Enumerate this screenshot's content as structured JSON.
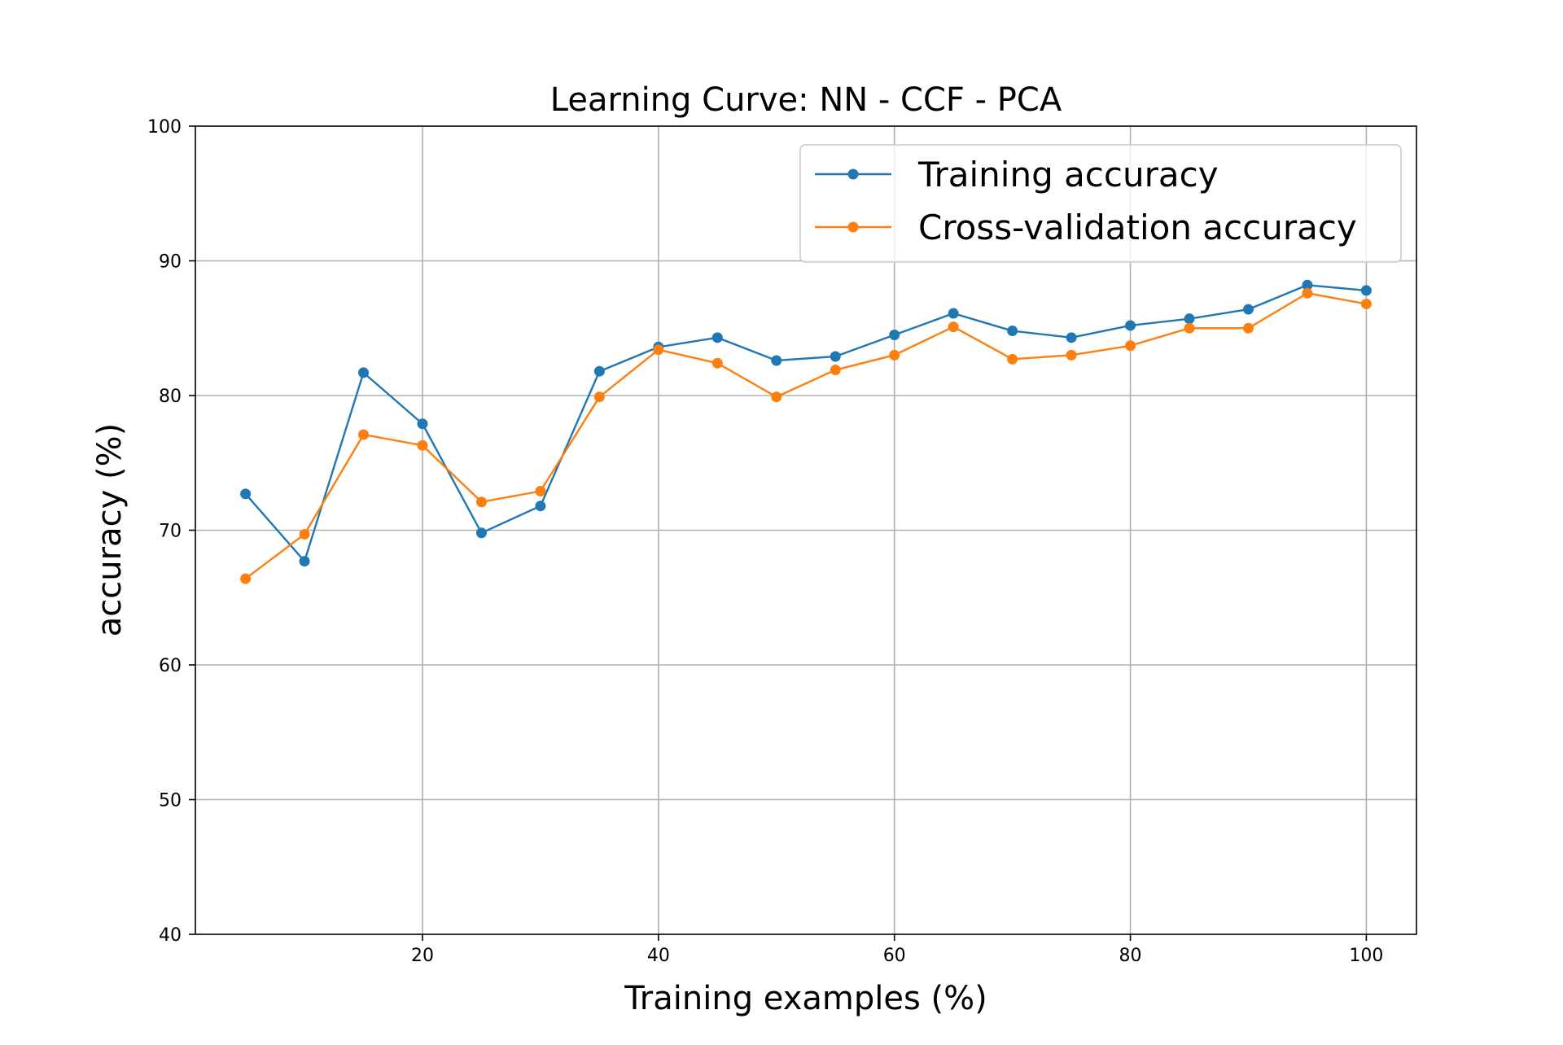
{
  "chart_data": {
    "type": "line",
    "title": "Learning Curve: NN - CCF - PCA",
    "xlabel": "Training examples (%)",
    "ylabel": "accuracy (%)",
    "xlim": [
      0.75,
      104.25
    ],
    "ylim": [
      40,
      100
    ],
    "xticks": [
      20,
      40,
      60,
      80,
      100
    ],
    "yticks": [
      40,
      50,
      60,
      70,
      80,
      90,
      100
    ],
    "grid": true,
    "legend_position": "top-right",
    "x": [
      5,
      10,
      15,
      20,
      25,
      30,
      35,
      40,
      45,
      50,
      55,
      60,
      65,
      70,
      75,
      80,
      85,
      90,
      95,
      100
    ],
    "series": [
      {
        "name": "Training accuracy",
        "color": "#1f77b4",
        "marker": "circle",
        "values": [
          72.7,
          67.7,
          81.7,
          77.9,
          69.8,
          71.8,
          81.8,
          83.6,
          84.3,
          82.6,
          82.9,
          84.5,
          86.1,
          84.8,
          84.3,
          85.2,
          85.7,
          86.4,
          88.2,
          87.8
        ]
      },
      {
        "name": "Cross-validation accuracy",
        "color": "#ff7f0e",
        "marker": "circle",
        "values": [
          66.4,
          69.7,
          77.1,
          76.3,
          72.1,
          72.9,
          79.9,
          83.4,
          82.4,
          79.9,
          81.9,
          83.0,
          85.1,
          82.7,
          83.0,
          83.7,
          85.0,
          85.0,
          87.6,
          86.8
        ]
      }
    ]
  }
}
